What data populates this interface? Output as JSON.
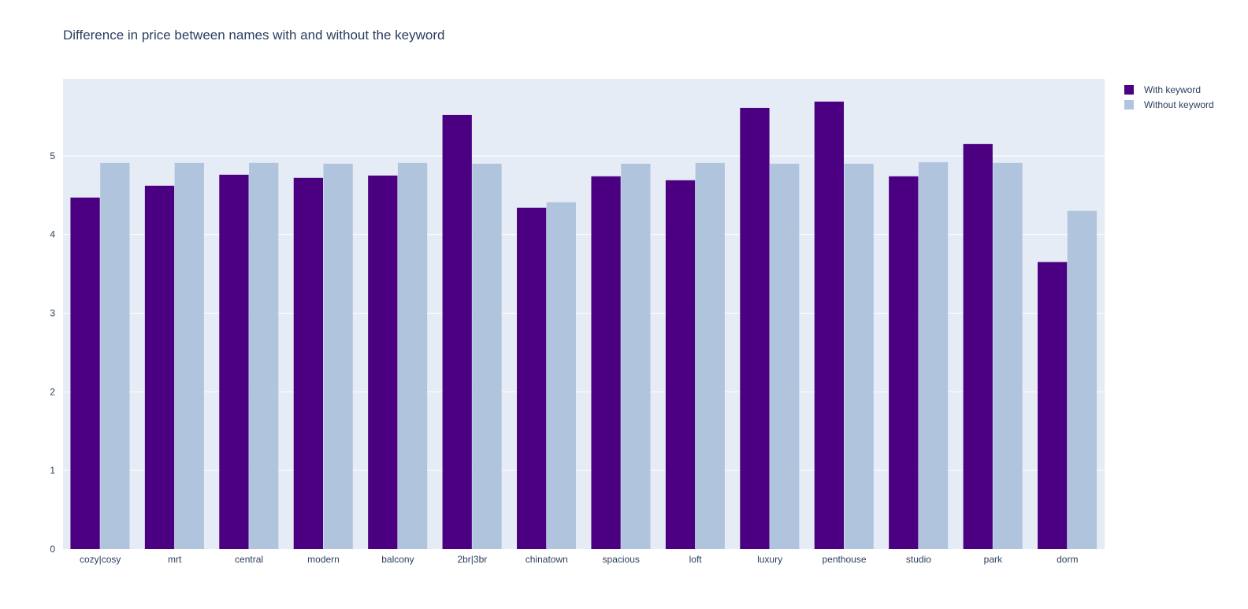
{
  "chart_data": {
    "type": "bar",
    "title": "Difference in price between names with and without the keyword",
    "xlabel": "",
    "ylabel": "",
    "categories": [
      "cozy|cosy",
      "mrt",
      "central",
      "modern",
      "balcony",
      "2br|3br",
      "chinatown",
      "spacious",
      "loft",
      "luxury",
      "penthouse",
      "studio",
      "park",
      "dorm"
    ],
    "series": [
      {
        "name": "With keyword",
        "color": "#4b0082",
        "values": [
          4.47,
          4.62,
          4.76,
          4.72,
          4.75,
          5.52,
          4.34,
          4.74,
          4.69,
          5.61,
          5.69,
          4.74,
          5.15,
          3.65
        ]
      },
      {
        "name": "Without keyword",
        "color": "#b0c4de",
        "values": [
          4.91,
          4.91,
          4.91,
          4.9,
          4.91,
          4.9,
          4.41,
          4.9,
          4.91,
          4.9,
          4.9,
          4.92,
          4.91,
          4.3
        ]
      }
    ],
    "ylim": [
      0,
      5.98
    ],
    "yticks": [
      "0",
      "1",
      "2",
      "3",
      "4",
      "5"
    ],
    "grid": true,
    "legend": "top-right",
    "plot_bg": "#e5ecf6"
  }
}
